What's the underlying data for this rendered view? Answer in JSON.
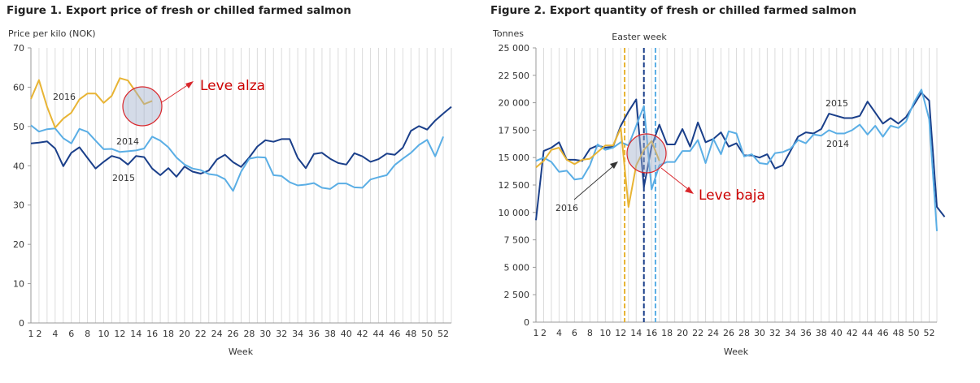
{
  "chart_data": [
    {
      "type": "line",
      "title": "Figure 1. Export price of fresh or chilled farmed salmon",
      "ylabel": "Price per kilo (NOK)",
      "xlabel": "Week",
      "xlim": [
        1,
        53
      ],
      "ylim": [
        0,
        70
      ],
      "yticks": [
        0,
        10,
        20,
        30,
        40,
        50,
        60,
        70
      ],
      "ytick_labels": [
        "0",
        "10",
        "20",
        "30",
        "40",
        "50",
        "60",
        "70"
      ],
      "xtick_labels": [
        "1",
        "2",
        "4",
        "6",
        "8",
        "10",
        "12",
        "14",
        "16",
        "18",
        "20",
        "22",
        "24",
        "26",
        "28",
        "30",
        "32",
        "34",
        "36",
        "38",
        "40",
        "42",
        "44",
        "46",
        "48",
        "50",
        "52"
      ],
      "grid": "vertical",
      "series": [
        {
          "name": "2015",
          "color": "#1a3f8a",
          "values": [
            45.7,
            45.9,
            46.2,
            44.4,
            39.9,
            43.3,
            44.7,
            42.0,
            39.3,
            41.0,
            42.5,
            41.9,
            40.3,
            42.5,
            42.2,
            39.3,
            37.6,
            39.4,
            37.2,
            39.8,
            38.5,
            38.0,
            38.8,
            41.6,
            42.8,
            40.9,
            39.7,
            42.1,
            44.9,
            46.5,
            46.1,
            46.8,
            46.8,
            42.0,
            39.4,
            43.0,
            43.3,
            41.8,
            40.7,
            40.3,
            43.2,
            42.4,
            41.0,
            41.7,
            43.1,
            42.8,
            44.6,
            48.9,
            50.1,
            49.2,
            51.5,
            53.3,
            55.0
          ]
        },
        {
          "name": "2014",
          "color": "#5aaee5",
          "values": [
            50.3,
            48.7,
            49.3,
            49.5,
            47.0,
            45.7,
            49.4,
            48.6,
            46.4,
            44.2,
            44.3,
            43.5,
            43.7,
            43.9,
            44.4,
            47.4,
            46.4,
            44.7,
            42.1,
            40.3,
            39.3,
            38.9,
            37.9,
            37.6,
            36.6,
            33.6,
            38.5,
            41.8,
            42.2,
            42.1,
            37.6,
            37.4,
            35.8,
            35.0,
            35.2,
            35.6,
            34.4,
            34.1,
            35.5,
            35.5,
            34.5,
            34.4,
            36.5,
            37.1,
            37.6,
            40.2,
            41.8,
            43.3,
            45.3,
            46.6,
            42.4,
            47.4
          ]
        },
        {
          "name": "2016",
          "color": "#e8b434",
          "values": [
            57.0,
            61.8,
            55.0,
            49.7,
            52.0,
            53.5,
            56.9,
            58.4,
            58.4,
            56.0,
            57.8,
            62.3,
            61.7,
            58.7,
            55.7,
            56.5
          ]
        }
      ],
      "annotations": [
        {
          "text": "Leve alza",
          "target_week": 15
        }
      ]
    },
    {
      "type": "line",
      "title": "Figure 2. Export quantity of fresh or chilled farmed salmon",
      "ylabel": "Tonnes",
      "xlabel": "Week",
      "xlim": [
        1,
        53
      ],
      "ylim": [
        0,
        25000
      ],
      "yticks": [
        0,
        2500,
        5000,
        7500,
        10000,
        12500,
        15000,
        17500,
        20000,
        22500,
        25000
      ],
      "ytick_labels": [
        "0",
        "2 500",
        "5 000",
        "7 500",
        "10 000",
        "12 500",
        "15 000",
        "17 500",
        "20 000",
        "22 500",
        "25 000"
      ],
      "xtick_labels": [
        "1",
        "2",
        "4",
        "6",
        "8",
        "10",
        "12",
        "14",
        "16",
        "18",
        "20",
        "22",
        "24",
        "26",
        "28",
        "30",
        "32",
        "34",
        "36",
        "38",
        "40",
        "42",
        "44",
        "46",
        "48",
        "50",
        "52"
      ],
      "grid": "vertical",
      "series": [
        {
          "name": "2015",
          "color": "#1a3f8a",
          "values": [
            9300,
            15600,
            15900,
            16400,
            14800,
            14800,
            14700,
            15800,
            16100,
            15900,
            16000,
            17900,
            19200,
            20300,
            12300,
            16000,
            18000,
            16200,
            16200,
            17600,
            16000,
            18200,
            16400,
            16700,
            17300,
            16000,
            16300,
            15200,
            15200,
            15000,
            15300,
            14000,
            14300,
            15600,
            16900,
            17300,
            17200,
            17600,
            19000,
            18800,
            18600,
            18600,
            18800,
            20100,
            19100,
            18100,
            18600,
            18100,
            18700,
            19800,
            20900,
            20200,
            10500,
            9600
          ]
        },
        {
          "name": "2014",
          "color": "#5aaee5",
          "values": [
            14700,
            15000,
            14600,
            13700,
            13800,
            13000,
            13100,
            14300,
            16200,
            15700,
            15900,
            16400,
            16100,
            17900,
            19700,
            12100,
            14300,
            14600,
            14600,
            15600,
            15600,
            16600,
            14500,
            16700,
            15300,
            17400,
            17200,
            15100,
            15300,
            14500,
            14400,
            15400,
            15500,
            15800,
            16600,
            16300,
            17100,
            17000,
            17500,
            17200,
            17200,
            17500,
            18000,
            17100,
            17900,
            16900,
            17900,
            17700,
            18300,
            20000,
            21200,
            18500,
            8300
          ]
        },
        {
          "name": "2016",
          "color": "#e8b434",
          "values": [
            14100,
            14700,
            15700,
            15900,
            14800,
            14400,
            14800,
            14900,
            15500,
            16100,
            16100,
            17700,
            10500,
            14300,
            15700,
            16500,
            14700
          ]
        }
      ],
      "event_lines": [
        {
          "week": 12.5,
          "color": "#e8b434"
        },
        {
          "week": 15,
          "color": "#1a3f8a"
        },
        {
          "week": 16.5,
          "color": "#5aaee5"
        }
      ],
      "event_label": "Easter week",
      "annotations": [
        {
          "text": "Leve baja",
          "target_week": 15
        }
      ]
    }
  ]
}
